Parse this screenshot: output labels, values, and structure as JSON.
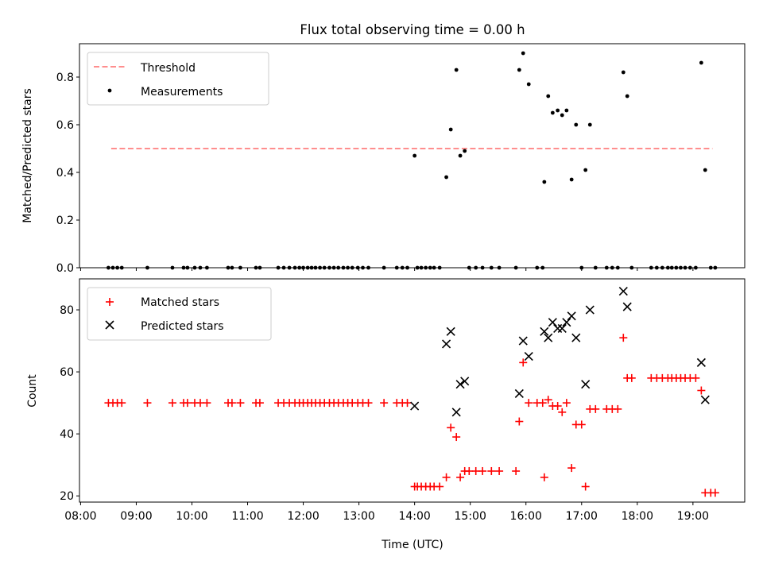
{
  "chart_data": [
    {
      "type": "scatter",
      "title": "Flux total observing time = 0.00 h",
      "xlabel": "",
      "ylabel": "Matched/Predicted stars",
      "ylim": [
        0,
        0.94
      ],
      "yticks": [
        "0.0",
        "0.2",
        "0.4",
        "0.6",
        "0.8"
      ],
      "legend_position": "top-left",
      "threshold": {
        "name": "Threshold",
        "value": 0.5,
        "x_range": [
          8.55,
          19.35
        ],
        "color": "#ff7f7f"
      },
      "series": [
        {
          "name": "Measurements",
          "color": "#000000",
          "marker": "dot",
          "points": [
            [
              8.5,
              0
            ],
            [
              8.58,
              0
            ],
            [
              8.66,
              0
            ],
            [
              8.74,
              0
            ],
            [
              9.2,
              0
            ],
            [
              9.65,
              0
            ],
            [
              9.85,
              0
            ],
            [
              9.92,
              0
            ],
            [
              10.05,
              0
            ],
            [
              10.15,
              0
            ],
            [
              10.27,
              0
            ],
            [
              10.65,
              0
            ],
            [
              10.72,
              0
            ],
            [
              10.87,
              0
            ],
            [
              11.15,
              0
            ],
            [
              11.22,
              0
            ],
            [
              11.55,
              0
            ],
            [
              11.65,
              0
            ],
            [
              11.75,
              0
            ],
            [
              11.85,
              0
            ],
            [
              11.93,
              0
            ],
            [
              12.0,
              0
            ],
            [
              12.08,
              0
            ],
            [
              12.15,
              0
            ],
            [
              12.22,
              0
            ],
            [
              12.3,
              0
            ],
            [
              12.38,
              0
            ],
            [
              12.47,
              0
            ],
            [
              12.55,
              0
            ],
            [
              12.63,
              0
            ],
            [
              12.72,
              0
            ],
            [
              12.8,
              0
            ],
            [
              12.88,
              0
            ],
            [
              12.98,
              0
            ],
            [
              13.07,
              0
            ],
            [
              13.17,
              0
            ],
            [
              13.45,
              0
            ],
            [
              13.68,
              0
            ],
            [
              13.78,
              0
            ],
            [
              13.87,
              0
            ],
            [
              14.0,
              0.47
            ],
            [
              14.05,
              0
            ],
            [
              14.12,
              0
            ],
            [
              14.2,
              0
            ],
            [
              14.28,
              0
            ],
            [
              14.35,
              0
            ],
            [
              14.45,
              0
            ],
            [
              14.57,
              0.38
            ],
            [
              14.65,
              0.58
            ],
            [
              14.75,
              0.83
            ],
            [
              14.82,
              0.47
            ],
            [
              14.9,
              0.49
            ],
            [
              14.98,
              0
            ],
            [
              15.1,
              0
            ],
            [
              15.22,
              0
            ],
            [
              15.38,
              0
            ],
            [
              15.52,
              0
            ],
            [
              15.82,
              0.0
            ],
            [
              15.88,
              0.83
            ],
            [
              15.95,
              0.9
            ],
            [
              16.05,
              0.77
            ],
            [
              16.2,
              0
            ],
            [
              16.3,
              0
            ],
            [
              16.33,
              0.36
            ],
            [
              16.4,
              0.72
            ],
            [
              16.48,
              0.65
            ],
            [
              16.57,
              0.66
            ],
            [
              16.65,
              0.64
            ],
            [
              16.73,
              0.66
            ],
            [
              16.82,
              0.37
            ],
            [
              16.9,
              0.6
            ],
            [
              17.0,
              0
            ],
            [
              17.07,
              0.41
            ],
            [
              17.15,
              0.6
            ],
            [
              17.25,
              0
            ],
            [
              17.45,
              0
            ],
            [
              17.55,
              0
            ],
            [
              17.65,
              0
            ],
            [
              17.75,
              0.82
            ],
            [
              17.82,
              0.72
            ],
            [
              17.9,
              0
            ],
            [
              18.25,
              0
            ],
            [
              18.35,
              0
            ],
            [
              18.45,
              0
            ],
            [
              18.55,
              0
            ],
            [
              18.62,
              0
            ],
            [
              18.7,
              0
            ],
            [
              18.78,
              0
            ],
            [
              18.86,
              0
            ],
            [
              18.95,
              0
            ],
            [
              19.05,
              0
            ],
            [
              19.15,
              0.86
            ],
            [
              19.22,
              0.41
            ],
            [
              19.32,
              0
            ],
            [
              19.4,
              0
            ]
          ]
        }
      ]
    },
    {
      "type": "scatter",
      "title": "",
      "xlabel": "Time (UTC)",
      "ylabel": "Count",
      "ylim": [
        18,
        90
      ],
      "yticks": [
        "20",
        "40",
        "60",
        "80"
      ],
      "xlim": [
        7.98,
        19.93
      ],
      "xticks": [
        "08:00",
        "09:00",
        "10:00",
        "11:00",
        "12:00",
        "13:00",
        "14:00",
        "15:00",
        "16:00",
        "17:00",
        "18:00",
        "19:00"
      ],
      "legend_position": "top-left",
      "series": [
        {
          "name": "Matched stars",
          "color": "#ff0000",
          "marker": "plus",
          "points": [
            [
              8.5,
              50
            ],
            [
              8.58,
              50
            ],
            [
              8.66,
              50
            ],
            [
              8.74,
              50
            ],
            [
              9.2,
              50
            ],
            [
              9.65,
              50
            ],
            [
              9.85,
              50
            ],
            [
              9.92,
              50
            ],
            [
              10.05,
              50
            ],
            [
              10.15,
              50
            ],
            [
              10.27,
              50
            ],
            [
              10.65,
              50
            ],
            [
              10.72,
              50
            ],
            [
              10.87,
              50
            ],
            [
              11.15,
              50
            ],
            [
              11.22,
              50
            ],
            [
              11.55,
              50
            ],
            [
              11.65,
              50
            ],
            [
              11.75,
              50
            ],
            [
              11.85,
              50
            ],
            [
              11.93,
              50
            ],
            [
              12.0,
              50
            ],
            [
              12.08,
              50
            ],
            [
              12.15,
              50
            ],
            [
              12.22,
              50
            ],
            [
              12.3,
              50
            ],
            [
              12.38,
              50
            ],
            [
              12.47,
              50
            ],
            [
              12.55,
              50
            ],
            [
              12.63,
              50
            ],
            [
              12.72,
              50
            ],
            [
              12.8,
              50
            ],
            [
              12.88,
              50
            ],
            [
              12.98,
              50
            ],
            [
              13.07,
              50
            ],
            [
              13.17,
              50
            ],
            [
              13.45,
              50
            ],
            [
              13.68,
              50
            ],
            [
              13.78,
              50
            ],
            [
              13.87,
              50
            ],
            [
              14.0,
              23
            ],
            [
              14.05,
              23
            ],
            [
              14.12,
              23
            ],
            [
              14.2,
              23
            ],
            [
              14.28,
              23
            ],
            [
              14.35,
              23
            ],
            [
              14.45,
              23
            ],
            [
              14.57,
              26
            ],
            [
              14.65,
              42
            ],
            [
              14.75,
              39
            ],
            [
              14.82,
              26
            ],
            [
              14.9,
              28
            ],
            [
              14.98,
              28
            ],
            [
              15.1,
              28
            ],
            [
              15.22,
              28
            ],
            [
              15.38,
              28
            ],
            [
              15.52,
              28
            ],
            [
              15.82,
              28
            ],
            [
              15.88,
              44
            ],
            [
              15.95,
              63
            ],
            [
              16.05,
              50
            ],
            [
              16.2,
              50
            ],
            [
              16.3,
              50
            ],
            [
              16.33,
              26
            ],
            [
              16.4,
              51
            ],
            [
              16.48,
              49
            ],
            [
              16.57,
              49
            ],
            [
              16.65,
              47
            ],
            [
              16.73,
              50
            ],
            [
              16.82,
              29
            ],
            [
              16.9,
              43
            ],
            [
              17.0,
              43
            ],
            [
              17.07,
              23
            ],
            [
              17.15,
              48
            ],
            [
              17.25,
              48
            ],
            [
              17.45,
              48
            ],
            [
              17.55,
              48
            ],
            [
              17.65,
              48
            ],
            [
              17.75,
              71
            ],
            [
              17.82,
              58
            ],
            [
              17.9,
              58
            ],
            [
              18.25,
              58
            ],
            [
              18.35,
              58
            ],
            [
              18.45,
              58
            ],
            [
              18.55,
              58
            ],
            [
              18.62,
              58
            ],
            [
              18.7,
              58
            ],
            [
              18.78,
              58
            ],
            [
              18.86,
              58
            ],
            [
              18.95,
              58
            ],
            [
              19.05,
              58
            ],
            [
              19.15,
              54
            ],
            [
              19.22,
              21
            ],
            [
              19.32,
              21
            ],
            [
              19.4,
              21
            ]
          ]
        },
        {
          "name": "Predicted stars",
          "color": "#000000",
          "marker": "x",
          "points": [
            [
              14.0,
              49
            ],
            [
              14.57,
              69
            ],
            [
              14.65,
              73
            ],
            [
              14.75,
              47
            ],
            [
              14.82,
              56
            ],
            [
              14.9,
              57
            ],
            [
              15.88,
              53
            ],
            [
              15.95,
              70
            ],
            [
              16.05,
              65
            ],
            [
              16.33,
              73
            ],
            [
              16.4,
              71
            ],
            [
              16.48,
              76
            ],
            [
              16.57,
              74
            ],
            [
              16.65,
              74
            ],
            [
              16.73,
              76
            ],
            [
              16.82,
              78
            ],
            [
              16.9,
              71
            ],
            [
              17.07,
              56
            ],
            [
              17.15,
              80
            ],
            [
              17.75,
              86
            ],
            [
              17.82,
              81
            ],
            [
              19.15,
              63
            ],
            [
              19.22,
              51
            ]
          ]
        }
      ]
    }
  ]
}
